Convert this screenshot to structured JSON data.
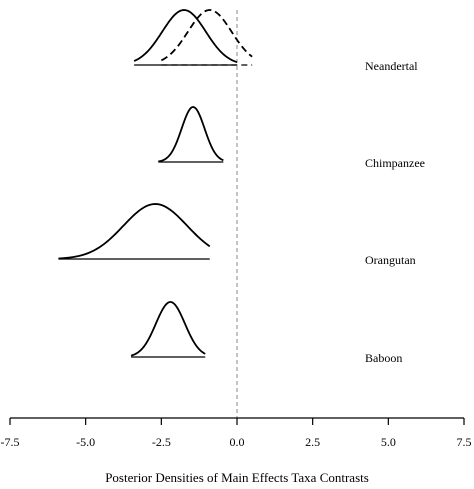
{
  "chart_data": {
    "type": "density",
    "title": "",
    "xlabel": "Posterior Densities of Main Effects Taxa Contrasts",
    "ylabel": "",
    "xlim": [
      -7.5,
      7.5
    ],
    "xticks": [
      -7.5,
      -5.0,
      -2.5,
      0.0,
      2.5,
      5.0,
      7.5
    ],
    "xtick_labels": [
      "-7.5",
      "-5.0",
      "-2.5",
      "0.0",
      "2.5",
      "5.0",
      "7.5"
    ],
    "reference_line": {
      "x": 0.0,
      "style": "dashed",
      "color": "#8a8a8a"
    },
    "grid": false,
    "legend": "none",
    "series": [
      {
        "name": "Neandertal",
        "style": "solid",
        "mean": -1.75,
        "sd": 0.72,
        "range": [
          -3.4,
          0.0
        ]
      },
      {
        "name": "Neandertal",
        "style": "dashed",
        "mean": -0.9,
        "sd": 0.72,
        "range": [
          -2.5,
          0.5
        ],
        "label_shown": false
      },
      {
        "name": "Chimpanzee",
        "style": "solid",
        "mean": -1.45,
        "sd": 0.38,
        "range": [
          -2.6,
          -0.45
        ]
      },
      {
        "name": "Orangutan",
        "style": "solid",
        "mean": -2.7,
        "sd": 1.05,
        "range": [
          -5.9,
          -0.9
        ]
      },
      {
        "name": "Baboon",
        "style": "solid",
        "mean": -2.2,
        "sd": 0.48,
        "range": [
          -3.5,
          -1.05
        ]
      }
    ]
  }
}
